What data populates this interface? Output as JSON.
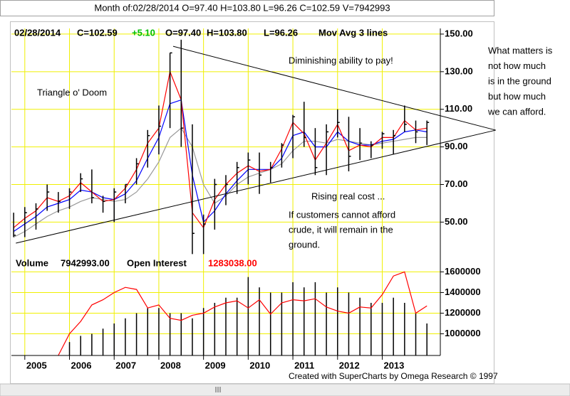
{
  "window_title": "Month of:02/28/2014 O=97.40 H=103.80 L=96.26 C=102.59 V=7942993",
  "footer": "Created with SuperCharts by Omega Research © 1997",
  "side_note": [
    "What matters is",
    "not how much",
    "is in the ground",
    "but how much",
    "we can afford."
  ],
  "chart_data": [
    {
      "type": "ohlc",
      "header": [
        {
          "text": "02/28/2014",
          "color": "#000000"
        },
        {
          "text": "C=102.59",
          "color": "#000000"
        },
        {
          "text": "+5.10",
          "color": "#00c000"
        },
        {
          "text": "O=97.40",
          "color": "#000000"
        },
        {
          "text": "H=103.80",
          "color": "#000000"
        },
        {
          "text": "L=96.26",
          "color": "#000000"
        },
        {
          "text": "Mov Avg 3 lines",
          "color": "#000000"
        }
      ],
      "annotations": [
        "Triangle o' Doom",
        "Diminishing ability to pay!",
        "Rising real cost ...",
        "If customers cannot afford",
        "crude, it will remain in the",
        "ground."
      ],
      "x": [
        2004.75,
        2005,
        2005.25,
        2005.5,
        2005.75,
        2006,
        2006.25,
        2006.5,
        2006.75,
        2007,
        2007.25,
        2007.5,
        2007.75,
        2008,
        2008.25,
        2008.5,
        2008.75,
        2009,
        2009.25,
        2009.5,
        2009.75,
        2010,
        2010.25,
        2010.5,
        2010.75,
        2011,
        2011.25,
        2011.5,
        2011.75,
        2012,
        2012.25,
        2012.5,
        2012.75,
        2013,
        2013.25,
        2013.5,
        2013.75,
        2014
      ],
      "xlim": [
        2004.7,
        2014.3
      ],
      "xticks": [
        2005,
        2006,
        2007,
        2008,
        2009,
        2010,
        2011,
        2012,
        2013
      ],
      "ylim": [
        32,
        153
      ],
      "yticks": [
        {
          "value": 50,
          "label": "50.00"
        },
        {
          "value": 70,
          "label": "70.00"
        },
        {
          "value": 90,
          "label": "90.00"
        },
        {
          "value": 110,
          "label": "110.00"
        },
        {
          "value": 130,
          "label": "130.00"
        },
        {
          "value": 150,
          "label": "150.00"
        }
      ],
      "grid": true,
      "grid_color": "#f0f000",
      "bar_color": "#000000",
      "high": [
        55,
        58,
        60,
        70,
        66,
        68,
        76,
        78,
        64,
        68,
        70,
        84,
        99,
        112,
        140,
        147,
        102,
        54,
        73,
        75,
        82,
        87,
        87,
        82,
        92,
        107,
        114,
        100,
        102,
        110,
        106,
        100,
        93,
        98,
        99,
        112,
        104,
        104
      ],
      "low": [
        42,
        42,
        46,
        56,
        55,
        57,
        66,
        60,
        55,
        50,
        60,
        70,
        79,
        86,
        100,
        90,
        33,
        33,
        46,
        59,
        65,
        70,
        65,
        71,
        79,
        84,
        90,
        75,
        75,
        95,
        77,
        83,
        84,
        89,
        86,
        98,
        92,
        91
      ],
      "close": [
        43,
        55,
        57,
        66,
        61,
        66,
        73,
        63,
        61,
        66,
        70,
        81,
        96,
        101,
        140,
        100,
        44,
        49,
        70,
        70,
        79,
        83,
        75,
        79,
        91,
        106,
        95,
        79,
        98,
        103,
        85,
        92,
        91,
        97,
        96,
        102,
        98,
        103
      ],
      "series": [
        {
          "color": "#999999",
          "values": [
            42,
            45,
            49,
            53,
            56,
            58,
            61,
            63,
            62,
            61,
            62,
            66,
            73,
            82,
            95,
            100,
            90,
            70,
            60,
            64,
            70,
            74,
            76,
            78,
            81,
            88,
            93,
            93,
            92,
            94,
            93,
            92,
            91,
            92,
            93,
            94,
            95,
            95
          ]
        },
        {
          "color": "#0000ff",
          "values": [
            45,
            49,
            53,
            58,
            60,
            62,
            67,
            66,
            63,
            62,
            65,
            72,
            84,
            95,
            113,
            115,
            75,
            50,
            56,
            65,
            72,
            78,
            78,
            78,
            84,
            96,
            98,
            90,
            90,
            98,
            93,
            91,
            91,
            93,
            94,
            98,
            99,
            98
          ]
        },
        {
          "color": "#ff0000",
          "values": [
            47,
            52,
            56,
            63,
            61,
            64,
            71,
            66,
            61,
            62,
            68,
            78,
            92,
            100,
            130,
            115,
            55,
            47,
            62,
            70,
            76,
            80,
            77,
            78,
            89,
            103,
            97,
            83,
            92,
            102,
            88,
            91,
            90,
            95,
            95,
            104,
            99,
            100
          ]
        }
      ],
      "trendlines": [
        {
          "color": "#000000",
          "x": [
            2008.32,
            2015.54
          ],
          "y": [
            143.5,
            98.9
          ]
        },
        {
          "color": "#000000",
          "x": [
            2004.8,
            2015.54
          ],
          "y": [
            38.8,
            98.9
          ]
        }
      ]
    },
    {
      "type": "bar",
      "header": [
        {
          "text": "Volume",
          "color": "#000000"
        },
        {
          "text": "7942993.00",
          "color": "#000000"
        },
        {
          "text": "Open Interest",
          "color": "#000000"
        },
        {
          "text": "1283038.00",
          "color": "#ff0000"
        }
      ],
      "x": [
        2004.75,
        2005,
        2005.25,
        2005.5,
        2005.75,
        2006,
        2006.25,
        2006.5,
        2006.75,
        2007,
        2007.25,
        2007.5,
        2007.75,
        2008,
        2008.25,
        2008.5,
        2008.75,
        2009,
        2009.25,
        2009.5,
        2009.75,
        2010,
        2010.25,
        2010.5,
        2010.75,
        2011,
        2011.25,
        2011.5,
        2011.75,
        2012,
        2012.25,
        2012.5,
        2012.75,
        2013,
        2013.25,
        2013.5,
        2013.75,
        2014
      ],
      "xlim": [
        2004.7,
        2014.3
      ],
      "ylim": [
        790000,
        1720000
      ],
      "yticks": [
        1000000,
        1200000,
        1400000,
        1600000
      ],
      "grid": true,
      "grid_color": "#f0f000",
      "series": [
        {
          "type": "bar",
          "color": "#000000",
          "values": [
            null,
            null,
            null,
            null,
            null,
            920000,
            980000,
            1000000,
            1050000,
            1100000,
            1150000,
            1200000,
            1250000,
            1250000,
            1200000,
            1200000,
            1150000,
            1250000,
            1300000,
            1350000,
            1350000,
            1550000,
            1450000,
            1400000,
            1400000,
            1500000,
            1450000,
            1500000,
            1400000,
            1450000,
            1400000,
            1350000,
            1300000,
            1300000,
            1350000,
            1300000,
            1200000,
            1100000
          ]
        },
        {
          "type": "line",
          "color": "#ff0000",
          "values": [
            null,
            null,
            null,
            null,
            790000,
            1000000,
            1120000,
            1280000,
            1330000,
            1400000,
            1450000,
            1430000,
            1250000,
            1280000,
            1150000,
            1130000,
            1180000,
            1200000,
            1260000,
            1300000,
            1320000,
            1250000,
            1330000,
            1190000,
            1300000,
            1330000,
            1320000,
            1340000,
            1260000,
            1220000,
            1200000,
            1260000,
            1250000,
            1380000,
            1560000,
            1600000,
            1200000,
            1270000
          ]
        }
      ]
    }
  ]
}
